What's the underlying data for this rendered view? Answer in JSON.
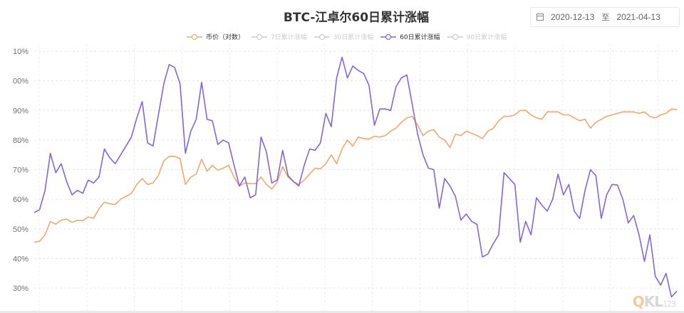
{
  "header": {
    "title": "BTC-江卓尔60日累计涨幅",
    "date_start": "2020-12-13",
    "date_sep": "至",
    "date_end": "2021-04-13"
  },
  "legend": [
    {
      "label": "币价（对数）",
      "color": "#f0a96b",
      "active": true
    },
    {
      "label": "7日累计涨幅",
      "color": "#cccccc",
      "active": false
    },
    {
      "label": "30日累计涨幅",
      "color": "#cccccc",
      "active": false
    },
    {
      "label": "60日累计涨幅",
      "color": "#8466d6",
      "active": true
    },
    {
      "label": "90日累计涨幅",
      "color": "#cccccc",
      "active": false
    }
  ],
  "watermark": {
    "q": "Q",
    "kl": "KL",
    "num": "123"
  },
  "chart_data": {
    "type": "line",
    "title": "BTC-江卓尔60日累计涨幅",
    "xlabel": "",
    "ylabel": "",
    "y_tick_labels": [
      "10%",
      "00%",
      "90%",
      "80%",
      "70%",
      "60%",
      "50%",
      "40%",
      "30%"
    ],
    "ylim": [
      25,
      115
    ],
    "grid": true,
    "legend_position": "top",
    "x_count": 120,
    "series": [
      {
        "name": "币价（对数）",
        "color": "#f0a96b",
        "values": [
          45.5,
          45.8,
          48,
          52.5,
          51.6,
          53,
          53.3,
          52.2,
          52.9,
          52.8,
          54,
          53.6,
          56.8,
          59,
          58.5,
          58.2,
          60,
          61,
          62,
          65,
          67,
          65,
          65.5,
          68,
          73,
          74.5,
          74.5,
          73.8,
          65,
          67.5,
          68.5,
          73.5,
          69.5,
          71.5,
          69.8,
          70.5,
          71.5,
          67.5,
          64.5,
          65.5,
          65.3,
          65.3,
          67.5,
          65,
          63.5,
          65.8,
          71,
          67.5,
          66,
          65,
          66.5,
          68.5,
          70.5,
          70.3,
          72,
          75,
          72,
          77,
          80,
          78,
          81,
          80.5,
          80.3,
          81.3,
          81,
          81.5,
          83,
          84,
          86,
          87.5,
          88,
          85,
          81.5,
          83,
          83.5,
          81,
          80,
          77.5,
          82,
          81.5,
          83,
          82.3,
          81.5,
          80.5,
          83,
          84,
          86.5,
          88,
          88,
          88.5,
          90,
          90,
          88.5,
          87.5,
          87,
          89.5,
          89.5,
          89.5,
          88.5,
          88.5,
          87.5,
          86.5,
          87,
          84,
          86,
          87,
          88,
          88.5,
          89,
          89.5,
          89.5,
          89.5,
          89,
          89.5,
          88,
          87.5,
          88.5,
          89,
          90.5,
          90.3
        ]
      },
      {
        "name": "60日累计涨幅",
        "color": "#8466d6",
        "values": [
          55.5,
          56.5,
          63,
          75.5,
          69,
          72,
          66,
          61.5,
          63,
          62,
          66.5,
          65.5,
          67.5,
          77,
          74,
          72,
          75,
          78,
          81,
          87.5,
          93,
          79,
          78,
          88.5,
          99,
          105.5,
          104.5,
          99,
          75.5,
          83,
          87,
          99.5,
          87,
          86.5,
          78.5,
          80,
          79,
          71.5,
          64.5,
          67.5,
          60.5,
          61.5,
          81,
          76,
          65.5,
          66.5,
          76.5,
          68,
          66,
          64.5,
          71.5,
          77,
          76.5,
          79,
          89,
          84.5,
          101,
          108,
          101,
          105,
          103.5,
          102.5,
          98.5,
          85,
          90.5,
          90.5,
          90,
          98,
          101,
          102,
          92,
          82,
          75,
          70.5,
          70,
          57,
          67,
          64.5,
          61,
          53,
          55,
          52.5,
          51.5,
          40.5,
          41.5,
          45,
          48,
          69,
          67,
          65,
          45.5,
          52.5,
          48,
          60.5,
          58,
          56,
          60,
          68.5,
          61.5,
          65,
          56,
          53.5,
          63,
          70,
          68,
          53.5,
          61.5,
          65,
          64.8,
          60,
          52,
          54.5,
          48,
          39,
          48,
          34,
          31,
          35,
          27,
          29
        ]
      }
    ]
  }
}
